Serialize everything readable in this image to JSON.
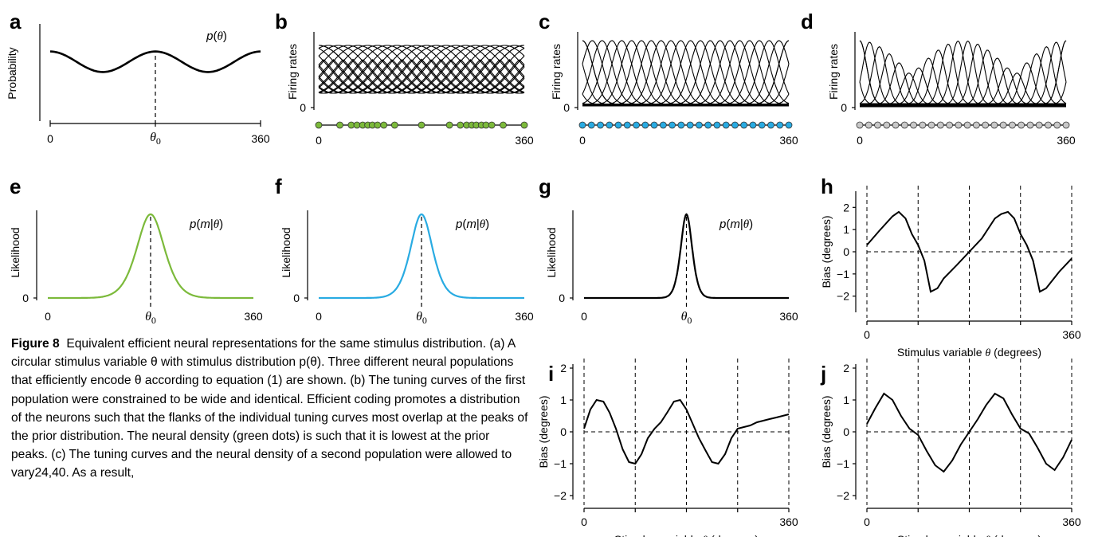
{
  "figure": {
    "panel_letters": [
      "a",
      "b",
      "c",
      "d",
      "e",
      "f",
      "g",
      "h",
      "i",
      "j"
    ],
    "caption": {
      "label": "Figure 8",
      "title": "Equivalent efficient neural representations for the same stimulus distribution.",
      "text": "(a) A circular stimulus variable θ with stimulus distribution p(θ). Three different neural populations that efficiently encode θ according to equation (1) are shown. (b) The tuning curves of the first population were constrained to be wide and identical. Efficient coding promotes a distribution of the neurons such that the flanks of the individual tuning curves most overlap at the peaks of the prior distribution. The neural density (green dots) is such that it is lowest at the prior peaks. (c) The tuning curves and the neural density of a second population were allowed to vary24,40. As a result,"
    },
    "colors": {
      "green": "#7cba3b",
      "blue": "#29abe2",
      "gray": "#c8c8c8",
      "black": "#000000"
    }
  },
  "chart_data": [
    {
      "id": "a",
      "type": "line",
      "ylabel": "Probability",
      "title": "p(θ)",
      "xlim": [
        0,
        360
      ],
      "x_ticks": [
        "0",
        "360"
      ],
      "marker_label": "θ0",
      "marker_x": 180,
      "x": [
        0,
        30,
        60,
        90,
        120,
        150,
        180,
        210,
        240,
        270,
        300,
        330,
        360
      ],
      "y": [
        0.78,
        0.72,
        0.6,
        0.55,
        0.6,
        0.72,
        0.78,
        0.72,
        0.6,
        0.55,
        0.6,
        0.72,
        0.78
      ]
    },
    {
      "id": "b",
      "type": "line",
      "ylabel": "Firing rates",
      "y_ticks": [
        "0"
      ],
      "x_ticks": [
        "0",
        "360"
      ],
      "tuning": "wide identical curves",
      "neuron_color": "green",
      "neuron_positions": [
        0,
        37,
        57,
        67,
        77,
        86,
        94,
        103,
        114,
        133,
        180,
        229,
        248,
        259,
        268,
        276,
        285,
        293,
        303,
        323,
        360
      ]
    },
    {
      "id": "c",
      "type": "line",
      "ylabel": "Firing rates",
      "y_ticks": [
        "0"
      ],
      "x_ticks": [
        "0",
        "360"
      ],
      "tuning": "narrow curves",
      "neuron_color": "blue",
      "neuron_count": 24
    },
    {
      "id": "d",
      "type": "line",
      "ylabel": "Firing rates",
      "y_ticks": [
        "0"
      ],
      "x_ticks": [
        "0",
        "360"
      ],
      "tuning": "varying gain curves",
      "neuron_color": "gray",
      "neuron_count": 24
    },
    {
      "id": "e",
      "type": "line",
      "ylabel": "Likelihood",
      "title": "p(m|θ)",
      "y_ticks": [
        "0"
      ],
      "x_ticks": [
        "0",
        "360"
      ],
      "marker_label": "θ0",
      "marker_x": 180,
      "width_deg": 24,
      "color": "green"
    },
    {
      "id": "f",
      "type": "line",
      "ylabel": "Likelihood",
      "title": "p(m|θ)",
      "y_ticks": [
        "0"
      ],
      "x_ticks": [
        "0",
        "360"
      ],
      "marker_label": "θ0",
      "marker_x": 180,
      "width_deg": 19,
      "color": "blue"
    },
    {
      "id": "g",
      "type": "line",
      "ylabel": "Likelihood",
      "title": "p(m|θ)",
      "y_ticks": [
        "0"
      ],
      "x_ticks": [
        "0",
        "360"
      ],
      "marker_label": "θ0",
      "marker_x": 180,
      "width_deg": 10,
      "color": "black"
    },
    {
      "id": "h",
      "type": "line",
      "xlabel": "Stimulus variable θ (degrees)",
      "ylabel": "Bias (degrees)",
      "ylim": [
        -2.5,
        2.5
      ],
      "y_ticks": [
        "2",
        "1",
        "0",
        "−1",
        "−2"
      ],
      "x_ticks": [
        "0",
        "360"
      ],
      "vlines": [
        0,
        90,
        180,
        270,
        360
      ],
      "x": [
        0,
        22,
        45,
        56,
        68,
        79,
        90,
        101,
        112,
        124,
        135,
        158,
        180,
        202,
        225,
        236,
        248,
        259,
        270,
        281,
        292,
        304,
        315,
        338,
        360
      ],
      "y": [
        0.3,
        0.95,
        1.6,
        1.8,
        1.5,
        0.8,
        0.3,
        -0.4,
        -1.8,
        -1.65,
        -1.2,
        -0.6,
        0.0,
        0.6,
        1.5,
        1.7,
        1.8,
        1.5,
        0.8,
        0.3,
        -0.4,
        -1.8,
        -1.65,
        -0.9,
        -0.3
      ]
    },
    {
      "id": "i",
      "type": "line",
      "xlabel": "Stimulus variable θ (degrees)",
      "ylabel": "Bias (degrees)",
      "ylim": [
        -2,
        2
      ],
      "y_ticks": [
        "2",
        "1",
        "0",
        "−1",
        "−2"
      ],
      "x_ticks": [
        "0",
        "360"
      ],
      "vlines": [
        0,
        90,
        180,
        270,
        360
      ],
      "x": [
        0,
        11,
        22,
        34,
        45,
        56,
        68,
        79,
        90,
        101,
        112,
        124,
        135,
        146,
        158,
        169,
        180,
        191,
        202,
        214,
        225,
        236,
        248,
        259,
        270,
        281,
        292,
        304,
        315,
        326,
        338,
        349,
        360
      ],
      "y": [
        0.1,
        0.7,
        1.0,
        0.95,
        0.6,
        0.1,
        -0.55,
        -0.95,
        -1.0,
        -0.7,
        -0.2,
        0.1,
        0.3,
        0.6,
        0.95,
        1.0,
        0.7,
        0.25,
        -0.2,
        -0.6,
        -0.95,
        -1.0,
        -0.7,
        -0.2,
        0.1,
        0.15,
        0.2,
        0.3,
        0.35,
        0.4,
        0.45,
        0.5,
        0.55
      ]
    },
    {
      "id": "j",
      "type": "line",
      "xlabel": "Stimulus variable θ (degrees)",
      "ylabel": "Bias (degrees)",
      "ylim": [
        -2,
        2
      ],
      "y_ticks": [
        "2",
        "1",
        "0",
        "−1",
        "−2"
      ],
      "x_ticks": [
        "0",
        "360"
      ],
      "vlines": [
        0,
        90,
        180,
        270,
        360
      ],
      "x": [
        0,
        15,
        30,
        45,
        60,
        75,
        90,
        105,
        120,
        135,
        150,
        165,
        180,
        195,
        210,
        225,
        240,
        255,
        270,
        285,
        300,
        315,
        330,
        345,
        360
      ],
      "y": [
        0.25,
        0.75,
        1.2,
        1.0,
        0.5,
        0.1,
        -0.1,
        -0.6,
        -1.05,
        -1.25,
        -0.9,
        -0.4,
        0.0,
        0.4,
        0.85,
        1.2,
        1.05,
        0.55,
        0.1,
        -0.05,
        -0.5,
        -1.0,
        -1.2,
        -0.8,
        -0.25
      ]
    }
  ]
}
